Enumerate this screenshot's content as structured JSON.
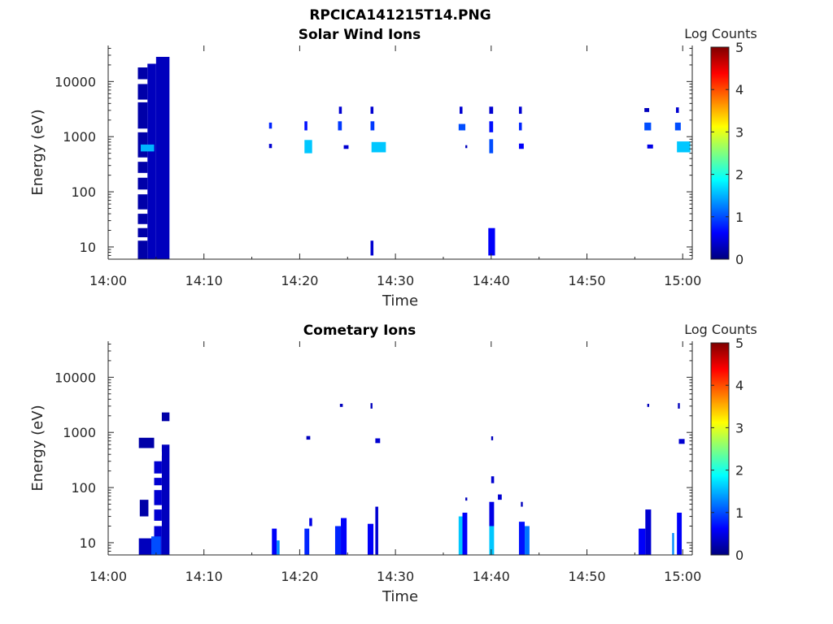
{
  "figure_title": "RPCICA141215T14.PNG",
  "chart_data": [
    {
      "type": "heatmap",
      "title": "Solar Wind Ions",
      "xlabel": "Time",
      "ylabel": "Energy (eV)",
      "xticks": [
        "14:00",
        "14:10",
        "14:20",
        "14:30",
        "14:40",
        "14:50",
        "15:00"
      ],
      "xlim_minutes": [
        0,
        61
      ],
      "yticks": [
        "10",
        "100",
        "1000",
        "10000"
      ],
      "ylim": [
        6,
        45000
      ],
      "yscale": "log",
      "colorbar": {
        "label": "Log Counts",
        "ticks": [
          "0",
          "1",
          "2",
          "3",
          "4",
          "5"
        ],
        "range": [
          0,
          5
        ],
        "colormap": "jet"
      },
      "cells": [
        {
          "t0": 3.1,
          "t1": 4.1,
          "e0": 6,
          "e1": 18000,
          "v": 0.2
        },
        {
          "t0": 4.1,
          "t1": 5.0,
          "e0": 6,
          "e1": 21000,
          "v": 0.3
        },
        {
          "t0": 5.0,
          "t1": 6.4,
          "e0": 6,
          "e1": 28000,
          "v": 0.3
        },
        {
          "t0": 3.4,
          "t1": 4.8,
          "e0": 540,
          "e1": 720,
          "v": 1.5
        },
        {
          "t0": 16.8,
          "t1": 17.1,
          "e0": 1400,
          "e1": 1800,
          "v": 0.8
        },
        {
          "t0": 16.8,
          "t1": 17.1,
          "e0": 620,
          "e1": 740,
          "v": 0.4
        },
        {
          "t0": 20.5,
          "t1": 20.8,
          "e0": 1300,
          "e1": 1900,
          "v": 0.7
        },
        {
          "t0": 20.5,
          "t1": 21.3,
          "e0": 500,
          "e1": 870,
          "v": 1.6
        },
        {
          "t0": 24.1,
          "t1": 24.4,
          "e0": 2600,
          "e1": 3500,
          "v": 0.4
        },
        {
          "t0": 24.0,
          "t1": 24.4,
          "e0": 1300,
          "e1": 1900,
          "v": 0.9
        },
        {
          "t0": 24.6,
          "t1": 25.1,
          "e0": 600,
          "e1": 700,
          "v": 0.4
        },
        {
          "t0": 27.4,
          "t1": 27.7,
          "e0": 2600,
          "e1": 3500,
          "v": 0.4
        },
        {
          "t0": 27.4,
          "t1": 27.8,
          "e0": 1300,
          "e1": 1900,
          "v": 0.9
        },
        {
          "t0": 27.5,
          "t1": 29.0,
          "e0": 520,
          "e1": 800,
          "v": 1.6
        },
        {
          "t0": 27.4,
          "t1": 27.7,
          "e0": 7,
          "e1": 13,
          "v": 0.4
        },
        {
          "t0": 36.7,
          "t1": 37.0,
          "e0": 2600,
          "e1": 3500,
          "v": 0.4
        },
        {
          "t0": 36.6,
          "t1": 37.3,
          "e0": 1300,
          "e1": 1700,
          "v": 1.0
        },
        {
          "t0": 37.3,
          "t1": 37.5,
          "e0": 620,
          "e1": 700,
          "v": 0.3
        },
        {
          "t0": 39.8,
          "t1": 40.2,
          "e0": 2600,
          "e1": 3500,
          "v": 0.4
        },
        {
          "t0": 39.8,
          "t1": 40.2,
          "e0": 1200,
          "e1": 1900,
          "v": 0.7
        },
        {
          "t0": 39.8,
          "t1": 40.2,
          "e0": 500,
          "e1": 900,
          "v": 1.0
        },
        {
          "t0": 39.7,
          "t1": 40.4,
          "e0": 7,
          "e1": 22,
          "v": 0.6
        },
        {
          "t0": 42.9,
          "t1": 43.2,
          "e0": 2600,
          "e1": 3500,
          "v": 0.4
        },
        {
          "t0": 42.9,
          "t1": 43.2,
          "e0": 1300,
          "e1": 1800,
          "v": 0.8
        },
        {
          "t0": 42.9,
          "t1": 43.4,
          "e0": 600,
          "e1": 750,
          "v": 0.6
        },
        {
          "t0": 56.0,
          "t1": 56.5,
          "e0": 2800,
          "e1": 3300,
          "v": 0.3
        },
        {
          "t0": 56.0,
          "t1": 56.7,
          "e0": 1300,
          "e1": 1800,
          "v": 1.0
        },
        {
          "t0": 56.3,
          "t1": 56.9,
          "e0": 610,
          "e1": 720,
          "v": 0.5
        },
        {
          "t0": 59.3,
          "t1": 59.6,
          "e0": 2700,
          "e1": 3400,
          "v": 0.4
        },
        {
          "t0": 59.2,
          "t1": 59.8,
          "e0": 1300,
          "e1": 1800,
          "v": 1.0
        },
        {
          "t0": 59.4,
          "t1": 60.8,
          "e0": 520,
          "e1": 820,
          "v": 1.6
        }
      ]
    },
    {
      "type": "heatmap",
      "title": "Cometary Ions",
      "xlabel": "Time",
      "ylabel": "Energy (eV)",
      "xticks": [
        "14:00",
        "14:10",
        "14:20",
        "14:30",
        "14:40",
        "14:50",
        "15:00"
      ],
      "xlim_minutes": [
        0,
        61
      ],
      "yticks": [
        "10",
        "100",
        "1000",
        "10000"
      ],
      "ylim": [
        6,
        45000
      ],
      "yscale": "log",
      "colorbar": {
        "label": "Log Counts",
        "ticks": [
          "0",
          "1",
          "2",
          "3",
          "4",
          "5"
        ],
        "range": [
          0,
          5
        ],
        "colormap": "jet"
      },
      "cells": [
        {
          "t0": 3.2,
          "t1": 4.8,
          "e0": 520,
          "e1": 800,
          "v": 0.2
        },
        {
          "t0": 3.2,
          "t1": 4.6,
          "e0": 6,
          "e1": 12,
          "v": 0.3
        },
        {
          "t0": 3.3,
          "t1": 4.2,
          "e0": 30,
          "e1": 60,
          "v": 0.2
        },
        {
          "t0": 4.8,
          "t1": 5.6,
          "e0": 6,
          "e1": 300,
          "v": 0.4
        },
        {
          "t0": 4.5,
          "t1": 5.5,
          "e0": 6,
          "e1": 13,
          "v": 1.0
        },
        {
          "t0": 5.6,
          "t1": 6.4,
          "e0": 6,
          "e1": 600,
          "v": 0.3
        },
        {
          "t0": 5.6,
          "t1": 6.4,
          "e0": 1600,
          "e1": 2300,
          "v": 0.2
        },
        {
          "t0": 17.1,
          "t1": 17.6,
          "e0": 6,
          "e1": 18,
          "v": 0.6
        },
        {
          "t0": 17.6,
          "t1": 17.9,
          "e0": 6,
          "e1": 11,
          "v": 1.3
        },
        {
          "t0": 20.5,
          "t1": 21.0,
          "e0": 6,
          "e1": 18,
          "v": 0.8
        },
        {
          "t0": 20.7,
          "t1": 21.1,
          "e0": 740,
          "e1": 860,
          "v": 0.3
        },
        {
          "t0": 21.0,
          "t1": 21.3,
          "e0": 20,
          "e1": 28,
          "v": 0.5
        },
        {
          "t0": 23.7,
          "t1": 24.3,
          "e0": 6,
          "e1": 20,
          "v": 0.8
        },
        {
          "t0": 24.3,
          "t1": 24.9,
          "e0": 6,
          "e1": 28,
          "v": 0.6
        },
        {
          "t0": 24.2,
          "t1": 24.5,
          "e0": 2900,
          "e1": 3300,
          "v": 0.3
        },
        {
          "t0": 27.1,
          "t1": 27.7,
          "e0": 6,
          "e1": 22,
          "v": 0.6
        },
        {
          "t0": 27.9,
          "t1": 28.2,
          "e0": 6,
          "e1": 45,
          "v": 0.4
        },
        {
          "t0": 27.4,
          "t1": 27.6,
          "e0": 2700,
          "e1": 3400,
          "v": 0.3
        },
        {
          "t0": 27.9,
          "t1": 28.4,
          "e0": 640,
          "e1": 780,
          "v": 0.4
        },
        {
          "t0": 36.6,
          "t1": 37.0,
          "e0": 6,
          "e1": 30,
          "v": 1.6
        },
        {
          "t0": 37.0,
          "t1": 37.5,
          "e0": 6,
          "e1": 35,
          "v": 0.6
        },
        {
          "t0": 37.3,
          "t1": 37.5,
          "e0": 58,
          "e1": 66,
          "v": 0.3
        },
        {
          "t0": 39.8,
          "t1": 40.3,
          "e0": 6,
          "e1": 20,
          "v": 1.6
        },
        {
          "t0": 39.8,
          "t1": 40.3,
          "e0": 20,
          "e1": 55,
          "v": 0.5
        },
        {
          "t0": 40.0,
          "t1": 40.3,
          "e0": 120,
          "e1": 160,
          "v": 0.4
        },
        {
          "t0": 40.0,
          "t1": 40.2,
          "e0": 720,
          "e1": 850,
          "v": 0.3
        },
        {
          "t0": 40.7,
          "t1": 41.1,
          "e0": 60,
          "e1": 75,
          "v": 0.4
        },
        {
          "t0": 42.9,
          "t1": 43.5,
          "e0": 6,
          "e1": 24,
          "v": 0.7
        },
        {
          "t0": 43.5,
          "t1": 44.0,
          "e0": 6,
          "e1": 20,
          "v": 1.2
        },
        {
          "t0": 43.1,
          "t1": 43.3,
          "e0": 45,
          "e1": 55,
          "v": 0.3
        },
        {
          "t0": 55.4,
          "t1": 56.1,
          "e0": 6,
          "e1": 18,
          "v": 0.6
        },
        {
          "t0": 56.1,
          "t1": 56.7,
          "e0": 6,
          "e1": 40,
          "v": 0.4
        },
        {
          "t0": 56.3,
          "t1": 56.5,
          "e0": 2900,
          "e1": 3300,
          "v": 0.3
        },
        {
          "t0": 58.9,
          "t1": 59.1,
          "e0": 6,
          "e1": 15,
          "v": 1.3
        },
        {
          "t0": 59.4,
          "t1": 59.9,
          "e0": 6,
          "e1": 35,
          "v": 0.6
        },
        {
          "t0": 59.5,
          "t1": 59.7,
          "e0": 2700,
          "e1": 3400,
          "v": 0.3
        },
        {
          "t0": 59.6,
          "t1": 60.2,
          "e0": 620,
          "e1": 760,
          "v": 0.4
        }
      ]
    }
  ]
}
